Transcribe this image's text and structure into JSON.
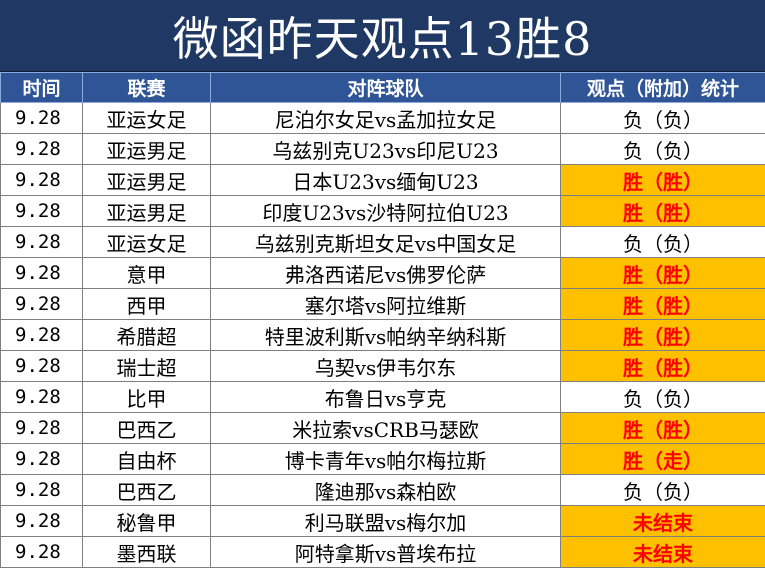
{
  "title": "微函昨天观点13胜8",
  "colors": {
    "title_bg": "#1f3864",
    "header_bg": "#2f5597",
    "highlight_bg": "#ffc000",
    "highlight_text": "#ff0000"
  },
  "columns": [
    "时间",
    "联赛",
    "对阵球队",
    "观点（附加）统计"
  ],
  "rows": [
    {
      "date": "9.28",
      "league": "亚运女足",
      "match": "尼泊尔女足vs孟加拉女足",
      "result": "负（负）",
      "status": "loss"
    },
    {
      "date": "9.28",
      "league": "亚运男足",
      "match": "乌兹别克U23vs印尼U23",
      "result": "负（负）",
      "status": "loss"
    },
    {
      "date": "9.28",
      "league": "亚运男足",
      "match": "日本U23vs缅甸U23",
      "result": "胜（胜）",
      "status": "win"
    },
    {
      "date": "9.28",
      "league": "亚运男足",
      "match": "印度U23vs沙特阿拉伯U23",
      "result": "胜（胜）",
      "status": "win"
    },
    {
      "date": "9.28",
      "league": "亚运女足",
      "match": "乌兹别克斯坦女足vs中国女足",
      "result": "负（负）",
      "status": "loss"
    },
    {
      "date": "9.28",
      "league": "意甲",
      "match": "弗洛西诺尼vs佛罗伦萨",
      "result": "胜（胜）",
      "status": "win"
    },
    {
      "date": "9.28",
      "league": "西甲",
      "match": "塞尔塔vs阿拉维斯",
      "result": "胜（胜）",
      "status": "win"
    },
    {
      "date": "9.28",
      "league": "希腊超",
      "match": "特里波利斯vs帕纳辛纳科斯",
      "result": "胜（胜）",
      "status": "win"
    },
    {
      "date": "9.28",
      "league": "瑞士超",
      "match": "乌契vs伊韦尔东",
      "result": "胜（胜）",
      "status": "win"
    },
    {
      "date": "9.28",
      "league": "比甲",
      "match": "布鲁日vs亨克",
      "result": "负（负）",
      "status": "loss"
    },
    {
      "date": "9.28",
      "league": "巴西乙",
      "match": "米拉索vsCRB马瑟欧",
      "result": "胜（胜）",
      "status": "win"
    },
    {
      "date": "9.28",
      "league": "自由杯",
      "match": "博卡青年vs帕尔梅拉斯",
      "result": "胜（走）",
      "status": "win"
    },
    {
      "date": "9.28",
      "league": "巴西乙",
      "match": "隆迪那vs森柏欧",
      "result": "负（负）",
      "status": "loss"
    },
    {
      "date": "9.28",
      "league": "秘鲁甲",
      "match": "利马联盟vs梅尔加",
      "result": "未结束",
      "status": "pending"
    },
    {
      "date": "9.28",
      "league": "墨西联",
      "match": "阿特拿斯vs普埃布拉",
      "result": "未结束",
      "status": "pending"
    }
  ]
}
